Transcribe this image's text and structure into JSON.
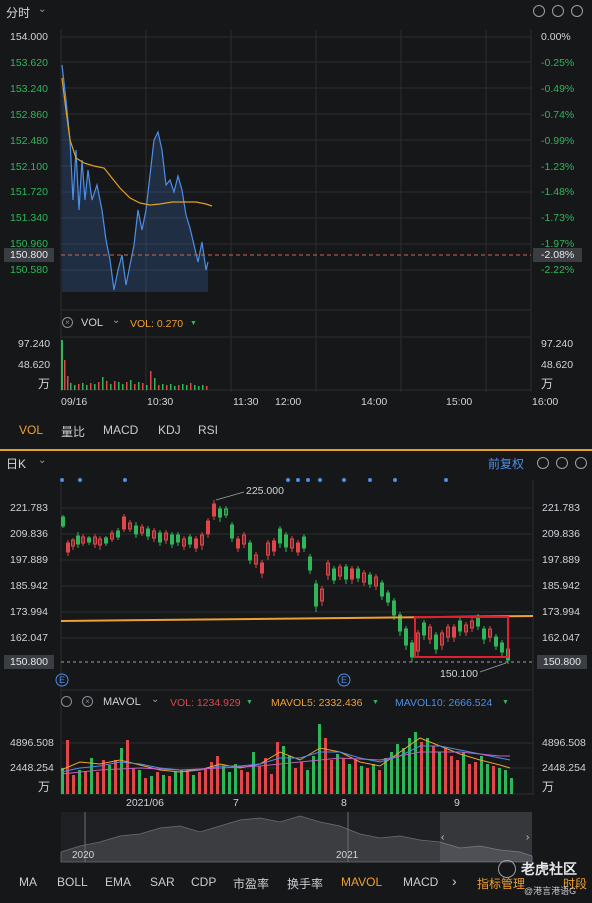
{
  "intraday": {
    "title": "分时",
    "price_ticks": [
      "154.000",
      "153.620",
      "153.240",
      "152.860",
      "152.480",
      "152.100",
      "151.720",
      "151.340",
      "150.960",
      "150.580"
    ],
    "pct_ticks": [
      "0.00%",
      "-0.25%",
      "-0.49%",
      "-0.74%",
      "-0.99%",
      "-1.23%",
      "-1.48%",
      "-1.73%",
      "-1.97%",
      "-2.22%"
    ],
    "current_price": "150.800",
    "current_pct": "-2.08%",
    "vol_label": "VOL",
    "vol_value": "VOL: 0.270",
    "vol_ticks": [
      "97.240",
      "48.620",
      "万"
    ],
    "time_labels": [
      "09/16",
      "10:30",
      "11:30",
      "12:00",
      "14:00",
      "15:00",
      "16:00"
    ],
    "tabs": [
      "VOL",
      "量比",
      "MACD",
      "KDJ",
      "RSI"
    ]
  },
  "daily": {
    "title": "日K",
    "adjust": "前复权",
    "price_ticks": [
      "221.783",
      "209.836",
      "197.889",
      "185.942",
      "173.994",
      "162.047"
    ],
    "current_price": "150.800",
    "high_label": "225.000",
    "low_label": "150.100",
    "event_marker": "E",
    "mavol_label": "MAVOL",
    "vol_value": "VOL: 1234.929",
    "mavol5": "MAVOL5: 2332.436",
    "mavol10": "MAVOL10: 2666.524",
    "vol_ticks": [
      "4896.508",
      "2448.254",
      "万"
    ],
    "month_labels": [
      "2021/06",
      "7",
      "8",
      "9"
    ],
    "year_labels": [
      "2020",
      "2021"
    ],
    "tabs": [
      "MA",
      "BOLL",
      "EMA",
      "SAR",
      "CDP",
      "市盈率",
      "换手率",
      "MAVOL",
      "MACD"
    ],
    "more": "›",
    "indicator_mgr": "指标管理",
    "period": "时段"
  },
  "watermark": {
    "brand": "老虎社区",
    "user": "@港言港语G"
  },
  "chart_data": [
    {
      "type": "line",
      "title": "分时",
      "ylim": [
        150.58,
        154.0
      ],
      "series": [
        {
          "values": [
            153.6,
            153.0,
            152.0,
            151.8,
            151.7,
            151.9,
            152.0,
            151.6,
            151.3,
            151.0,
            150.8,
            150.9,
            151.1,
            151.3,
            151.7,
            152.3,
            152.5,
            152.1,
            151.9,
            151.7,
            151.4,
            151.0,
            150.8
          ]
        },
        {
          "values": [
            153.0,
            152.4,
            152.0,
            151.9,
            151.85,
            151.8,
            151.75,
            151.6,
            151.5,
            151.45,
            151.45,
            151.5,
            151.5,
            151.5,
            151.5,
            151.52,
            151.53,
            151.53,
            151.52,
            151.5,
            151.48,
            151.45,
            151.4
          ]
        }
      ]
    },
    {
      "type": "bar",
      "title": "日K",
      "ylim": [
        150.1,
        225.0
      ],
      "categories": [
        "2021/06",
        "7",
        "8",
        "9"
      ],
      "values": [
        210,
        198,
        186,
        150.8
      ]
    }
  ]
}
